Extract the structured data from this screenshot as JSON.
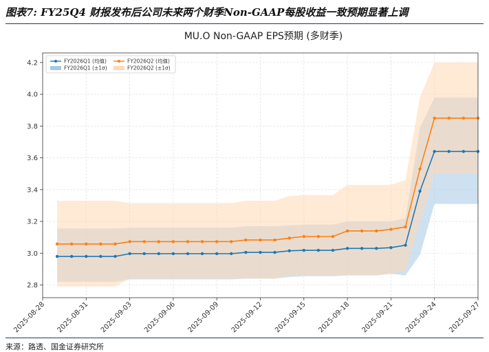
{
  "header": {
    "caption": "图表7: FY25Q4 财报发布后公司未来两个财季Non-GAAP每股收益一致预期显著上调"
  },
  "footer": {
    "source": "来源：路透、国金证券研究所"
  },
  "chart_data": {
    "type": "line",
    "title": "MU.O Non-GAAP EPS预期 (多财季)",
    "xlabel": "",
    "ylabel": "",
    "ylim": [
      2.72,
      4.26
    ],
    "yticks": [
      2.8,
      3.0,
      3.2,
      3.4,
      3.6,
      3.8,
      4.0,
      4.2
    ],
    "xlim": [
      "2025-08-28",
      "2025-09-27"
    ],
    "xticks": [
      "2025-08-28",
      "2025-08-31",
      "2025-09-03",
      "2025-09-06",
      "2025-09-09",
      "2025-09-12",
      "2025-09-15",
      "2025-09-18",
      "2025-09-21",
      "2025-09-24",
      "2025-09-27"
    ],
    "grid": true,
    "legend_position": "top-left",
    "series": [
      {
        "name": "FY2026Q1 (均值)",
        "band_name": "FY2026Q1 (±1σ)",
        "color": "#1f77b4",
        "band_color": "#a6c8e6",
        "x": [
          "2025-08-29",
          "2025-08-30",
          "2025-08-31",
          "2025-09-01",
          "2025-09-02",
          "2025-09-03",
          "2025-09-04",
          "2025-09-05",
          "2025-09-06",
          "2025-09-07",
          "2025-09-08",
          "2025-09-09",
          "2025-09-10",
          "2025-09-11",
          "2025-09-12",
          "2025-09-13",
          "2025-09-14",
          "2025-09-15",
          "2025-09-16",
          "2025-09-17",
          "2025-09-18",
          "2025-09-19",
          "2025-09-20",
          "2025-09-21",
          "2025-09-22",
          "2025-09-23",
          "2025-09-24",
          "2025-09-25",
          "2025-09-26",
          "2025-09-27"
        ],
        "values": [
          2.98,
          2.98,
          2.98,
          2.98,
          2.98,
          2.997,
          2.997,
          2.997,
          2.997,
          2.997,
          2.997,
          2.997,
          2.997,
          3.005,
          3.005,
          3.005,
          3.015,
          3.018,
          3.018,
          3.018,
          3.03,
          3.03,
          3.03,
          3.035,
          3.05,
          3.39,
          3.64,
          3.64,
          3.64,
          3.64
        ],
        "upper": [
          3.155,
          3.155,
          3.155,
          3.155,
          3.155,
          3.16,
          3.16,
          3.16,
          3.16,
          3.16,
          3.16,
          3.16,
          3.16,
          3.17,
          3.17,
          3.17,
          3.175,
          3.18,
          3.18,
          3.18,
          3.2,
          3.2,
          3.2,
          3.2,
          3.22,
          3.79,
          3.98,
          3.98,
          3.98,
          3.98
        ],
        "lower": [
          2.82,
          2.82,
          2.82,
          2.82,
          2.82,
          2.835,
          2.835,
          2.835,
          2.835,
          2.835,
          2.835,
          2.835,
          2.835,
          2.84,
          2.84,
          2.84,
          2.85,
          2.855,
          2.855,
          2.855,
          2.86,
          2.86,
          2.86,
          2.87,
          2.86,
          2.99,
          3.31,
          3.31,
          3.31,
          3.31
        ]
      },
      {
        "name": "FY2026Q2 (均值)",
        "band_name": "FY2026Q2 (±1σ)",
        "color": "#ff7f0e",
        "band_color": "#ffd8b3",
        "x": [
          "2025-08-29",
          "2025-08-30",
          "2025-08-31",
          "2025-09-01",
          "2025-09-02",
          "2025-09-03",
          "2025-09-04",
          "2025-09-05",
          "2025-09-06",
          "2025-09-07",
          "2025-09-08",
          "2025-09-09",
          "2025-09-10",
          "2025-09-11",
          "2025-09-12",
          "2025-09-13",
          "2025-09-14",
          "2025-09-15",
          "2025-09-16",
          "2025-09-17",
          "2025-09-18",
          "2025-09-19",
          "2025-09-20",
          "2025-09-21",
          "2025-09-22",
          "2025-09-23",
          "2025-09-24",
          "2025-09-25",
          "2025-09-26",
          "2025-09-27"
        ],
        "values": [
          3.058,
          3.058,
          3.058,
          3.058,
          3.058,
          3.073,
          3.073,
          3.073,
          3.073,
          3.073,
          3.073,
          3.073,
          3.073,
          3.083,
          3.083,
          3.083,
          3.095,
          3.105,
          3.105,
          3.105,
          3.14,
          3.14,
          3.14,
          3.15,
          3.165,
          3.53,
          3.85,
          3.85,
          3.85,
          3.85
        ],
        "upper": [
          3.33,
          3.33,
          3.33,
          3.33,
          3.33,
          3.315,
          3.315,
          3.315,
          3.315,
          3.315,
          3.315,
          3.315,
          3.315,
          3.33,
          3.33,
          3.33,
          3.36,
          3.365,
          3.365,
          3.365,
          3.43,
          3.43,
          3.43,
          3.43,
          3.46,
          3.98,
          4.2,
          4.2,
          4.2,
          4.2
        ],
        "lower": [
          2.79,
          2.79,
          2.79,
          2.79,
          2.79,
          2.84,
          2.84,
          2.84,
          2.84,
          2.84,
          2.84,
          2.84,
          2.84,
          2.84,
          2.84,
          2.84,
          2.86,
          2.86,
          2.86,
          2.86,
          2.86,
          2.86,
          2.86,
          2.87,
          2.89,
          3.2,
          3.5,
          3.5,
          3.5,
          3.5
        ]
      }
    ]
  }
}
